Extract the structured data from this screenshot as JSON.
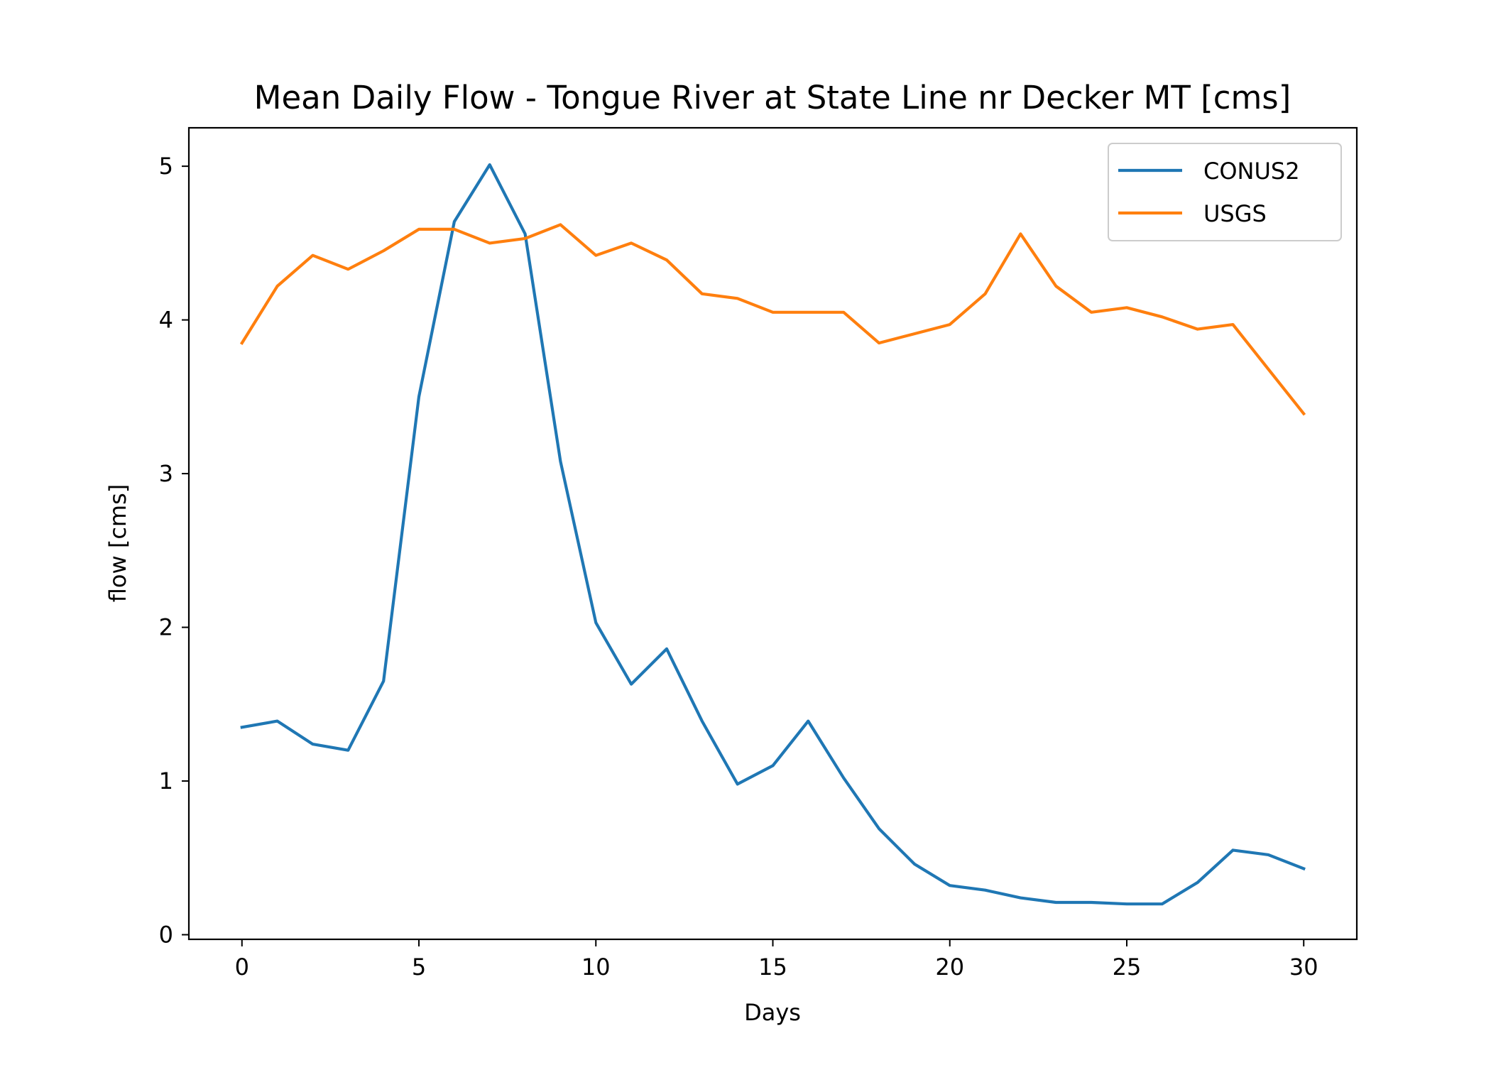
{
  "chart_data": {
    "type": "line",
    "title": "Mean Daily Flow - Tongue River at State Line nr Decker MT [cms]",
    "xlabel": "Days",
    "ylabel": "flow [cms]",
    "xlim": [
      -1.5,
      31.5
    ],
    "ylim": [
      -0.03,
      5.25
    ],
    "xticks": [
      0,
      5,
      10,
      15,
      20,
      25,
      30
    ],
    "yticks": [
      0,
      1,
      2,
      3,
      4,
      5
    ],
    "grid": false,
    "legend_position": "upper right",
    "x": [
      0,
      1,
      2,
      3,
      4,
      5,
      6,
      7,
      8,
      9,
      10,
      11,
      12,
      13,
      14,
      15,
      16,
      17,
      18,
      19,
      20,
      21,
      22,
      23,
      24,
      25,
      26,
      27,
      28,
      29,
      30
    ],
    "series": [
      {
        "name": "CONUS2",
        "color": "#1f77b4",
        "values": [
          1.35,
          1.39,
          1.24,
          1.2,
          1.65,
          3.5,
          4.64,
          5.01,
          4.56,
          3.08,
          2.03,
          1.63,
          1.86,
          1.39,
          0.98,
          1.1,
          1.39,
          1.02,
          0.69,
          0.46,
          0.32,
          0.29,
          0.24,
          0.21,
          0.21,
          0.2,
          0.2,
          0.34,
          0.55,
          0.52,
          0.43
        ]
      },
      {
        "name": "USGS",
        "color": "#ff7f0e",
        "values": [
          3.85,
          4.22,
          4.42,
          4.33,
          4.45,
          4.59,
          4.59,
          4.5,
          4.53,
          4.62,
          4.42,
          4.5,
          4.39,
          4.17,
          4.14,
          4.05,
          4.05,
          4.05,
          3.85,
          3.91,
          3.97,
          4.17,
          4.56,
          4.22,
          4.05,
          4.08,
          4.02,
          3.94,
          3.97,
          3.68,
          3.39
        ]
      }
    ]
  }
}
